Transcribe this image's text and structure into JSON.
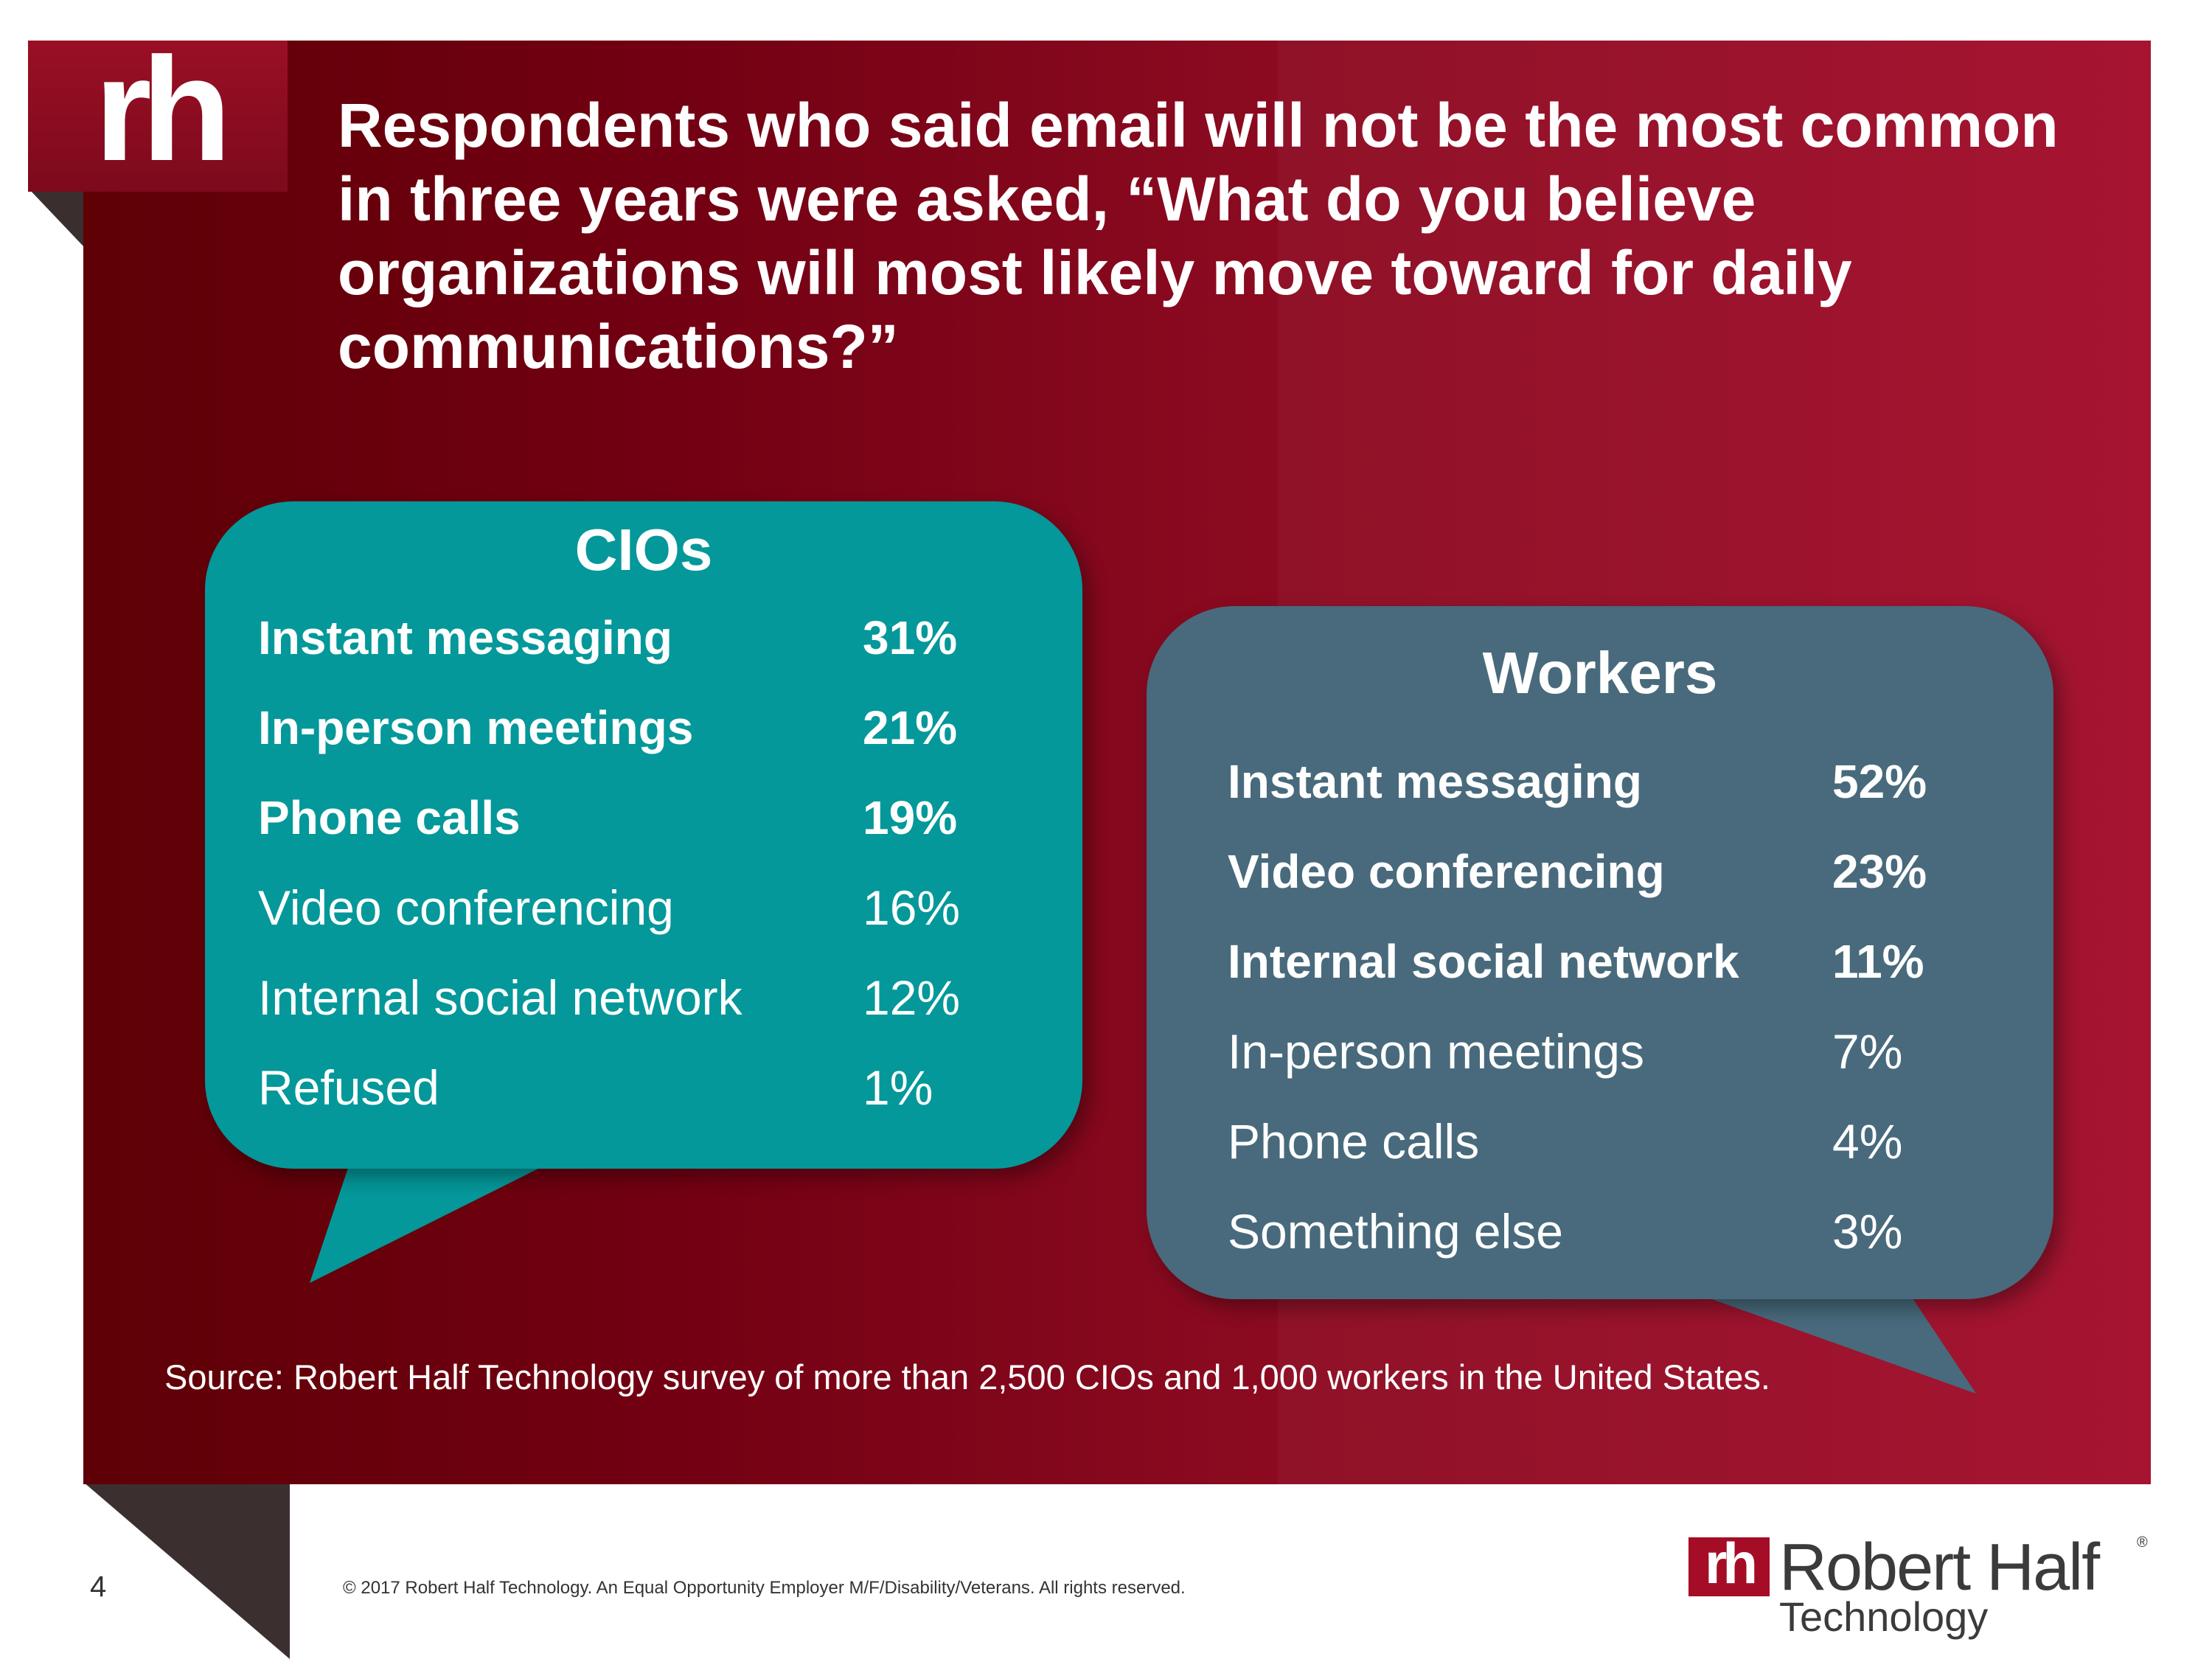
{
  "logo": {
    "mark": "rh"
  },
  "headline": "Respondents who said email will not be the most common in three years were asked, “What do you believe organizations will most likely move toward for daily communications?”",
  "cios": {
    "title": "CIOs",
    "rows": [
      {
        "label": "Instant messaging",
        "value": "31%",
        "emphasis": true
      },
      {
        "label": "In-person meetings",
        "value": "21%",
        "emphasis": true
      },
      {
        "label": "Phone calls",
        "value": "19%",
        "emphasis": true
      },
      {
        "label": "Video conferencing",
        "value": "16%",
        "emphasis": false
      },
      {
        "label": "Internal social network",
        "value": "12%",
        "emphasis": false
      },
      {
        "label": "Refused",
        "value": "1%",
        "emphasis": false
      }
    ]
  },
  "workers": {
    "title": "Workers",
    "rows": [
      {
        "label": "Instant messaging",
        "value": "52%",
        "emphasis": true
      },
      {
        "label": "Video conferencing",
        "value": "23%",
        "emphasis": true
      },
      {
        "label": "Internal social network",
        "value": "11%",
        "emphasis": true
      },
      {
        "label": "In-person meetings",
        "value": "7%",
        "emphasis": false
      },
      {
        "label": "Phone calls",
        "value": "4%",
        "emphasis": false
      },
      {
        "label": "Something else",
        "value": "3%",
        "emphasis": false
      }
    ]
  },
  "source": "Source: Robert Half Technology survey of more than 2,500 CIOs and 1,000 workers in the United States.",
  "footer": {
    "page_number": "4",
    "copyright": "© 2017 Robert Half Technology. An Equal Opportunity Employer M/F/Disability/Veterans. All rights reserved.",
    "brand_mark": "rh",
    "brand_name": "Robert Half",
    "brand_reg": "®",
    "brand_sub": "Technology"
  },
  "colors": {
    "panel_dark": "#5e0006",
    "panel_light": "#a30c2a",
    "cio_bubble": "#04989a",
    "workers_bubble": "#486a7c",
    "brand_red": "#a50d26"
  }
}
